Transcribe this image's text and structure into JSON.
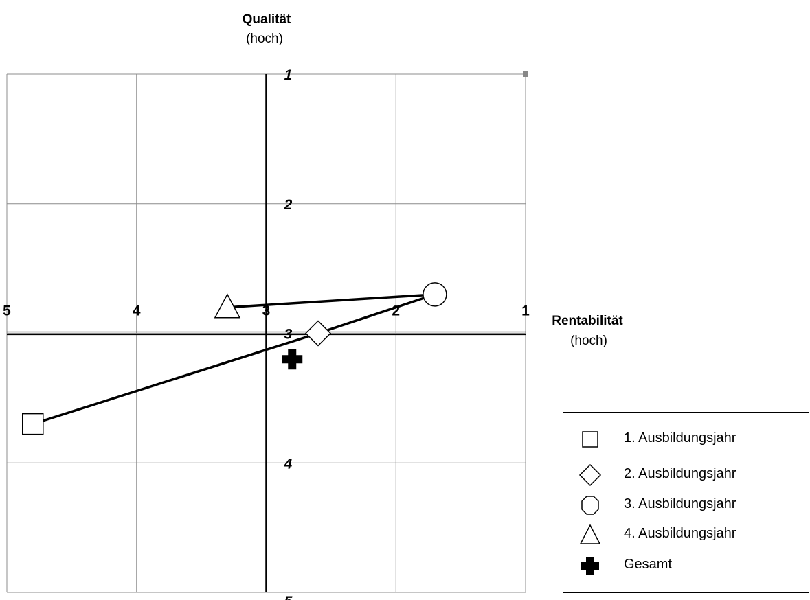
{
  "chart_data": {
    "type": "scatter",
    "x_axis": {
      "title": "Rentabilität",
      "subtitle": "(hoch)",
      "range": [
        5,
        1
      ],
      "reversed": true,
      "ticks": [
        5,
        4,
        3,
        2,
        1
      ],
      "tick_labels": [
        "5",
        "4",
        "3",
        "2",
        "1"
      ]
    },
    "y_axis": {
      "title": "Qualität",
      "subtitle": "(hoch)",
      "range": [
        1,
        5
      ],
      "reversed": true,
      "ticks": [
        1,
        2,
        3,
        4,
        5
      ],
      "tick_labels": [
        "1",
        "2",
        "3",
        "4",
        "5"
      ]
    },
    "grid": true,
    "legend_position": "bottom-right",
    "series": [
      {
        "name": "1. Ausbildungsjahr",
        "marker": "square",
        "x": 4.8,
        "y": 3.7
      },
      {
        "name": "2. Ausbildungsjahr",
        "marker": "diamond",
        "x": 2.6,
        "y": 3.0
      },
      {
        "name": "3. Ausbildungsjahr",
        "marker": "circle",
        "x": 1.7,
        "y": 2.7
      },
      {
        "name": "4. Ausbildungsjahr",
        "marker": "triangle",
        "x": 3.3,
        "y": 2.8
      },
      {
        "name": "Gesamt",
        "marker": "cross",
        "x": 2.8,
        "y": 3.2
      }
    ],
    "connecting_lines": [
      {
        "from": "1. Ausbildungsjahr",
        "to": "2. Ausbildungsjahr"
      },
      {
        "from": "2. Ausbildungsjahr",
        "to": "3. Ausbildungsjahr"
      },
      {
        "from": "3. Ausbildungsjahr",
        "to": "4. Ausbildungsjahr"
      }
    ]
  }
}
